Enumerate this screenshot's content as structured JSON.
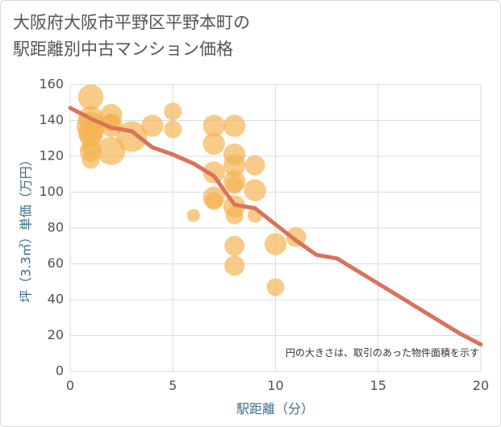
{
  "title_lines": [
    "大阪府大阪市平野区平野本町の",
    "駅距離別中古マンション価格"
  ],
  "chart_data": {
    "type": "scatter",
    "xlabel": "駅距離（分）",
    "ylabel": "坪（3.3㎡）単価（万円）",
    "xlim": [
      0,
      20
    ],
    "ylim": [
      0,
      160
    ],
    "xticks": [
      0,
      5,
      10,
      15,
      20
    ],
    "yticks": [
      0,
      20,
      40,
      60,
      80,
      100,
      120,
      140,
      160
    ],
    "grid": true,
    "note": "円の大きさは、取引のあった物件面積を示す",
    "colors": {
      "bubble": "#f4b350",
      "line": "#d9735a",
      "grid": "#d3dde6",
      "axis_title": "#3d6e8a"
    },
    "bubbles": [
      {
        "x": 1,
        "y": 153,
        "size": 3
      },
      {
        "x": 1,
        "y": 141,
        "size": 3
      },
      {
        "x": 1,
        "y": 137,
        "size": 4
      },
      {
        "x": 1,
        "y": 133,
        "size": 3
      },
      {
        "x": 1,
        "y": 131,
        "size": 2
      },
      {
        "x": 1,
        "y": 125,
        "size": 1
      },
      {
        "x": 1,
        "y": 123,
        "size": 2
      },
      {
        "x": 1,
        "y": 118,
        "size": 1
      },
      {
        "x": 2,
        "y": 143,
        "size": 2
      },
      {
        "x": 2,
        "y": 139,
        "size": 1
      },
      {
        "x": 2,
        "y": 137,
        "size": 2
      },
      {
        "x": 2,
        "y": 123,
        "size": 4
      },
      {
        "x": 3,
        "y": 131,
        "size": 5
      },
      {
        "x": 4,
        "y": 137,
        "size": 2
      },
      {
        "x": 5,
        "y": 145,
        "size": 1
      },
      {
        "x": 5,
        "y": 135,
        "size": 1
      },
      {
        "x": 6,
        "y": 87,
        "size": 0.3
      },
      {
        "x": 7,
        "y": 137,
        "size": 2
      },
      {
        "x": 7,
        "y": 127,
        "size": 2
      },
      {
        "x": 7,
        "y": 111,
        "size": 2
      },
      {
        "x": 7,
        "y": 97,
        "size": 2
      },
      {
        "x": 7,
        "y": 95,
        "size": 1
      },
      {
        "x": 8,
        "y": 137,
        "size": 2
      },
      {
        "x": 8,
        "y": 121,
        "size": 2
      },
      {
        "x": 8,
        "y": 115,
        "size": 2
      },
      {
        "x": 8,
        "y": 106,
        "size": 2
      },
      {
        "x": 8,
        "y": 104,
        "size": 1
      },
      {
        "x": 8,
        "y": 92,
        "size": 2
      },
      {
        "x": 8,
        "y": 87,
        "size": 1
      },
      {
        "x": 8,
        "y": 70,
        "size": 1.5
      },
      {
        "x": 8,
        "y": 59,
        "size": 1.5
      },
      {
        "x": 9,
        "y": 115,
        "size": 1.5
      },
      {
        "x": 9,
        "y": 101,
        "size": 2
      },
      {
        "x": 9,
        "y": 87,
        "size": 0.5
      },
      {
        "x": 10,
        "y": 71,
        "size": 2
      },
      {
        "x": 10,
        "y": 47,
        "size": 1
      },
      {
        "x": 11,
        "y": 75,
        "size": 1.5
      }
    ],
    "trend": {
      "x": [
        0,
        1,
        2,
        3,
        4,
        5,
        6,
        7,
        8,
        9,
        10,
        11,
        12,
        13,
        14,
        15,
        16,
        17,
        18,
        19,
        20
      ],
      "y": [
        147,
        141,
        136,
        134,
        125,
        121,
        116,
        109,
        93,
        91,
        82,
        73,
        65,
        63,
        56,
        49,
        42,
        35,
        28,
        21,
        15
      ]
    }
  }
}
